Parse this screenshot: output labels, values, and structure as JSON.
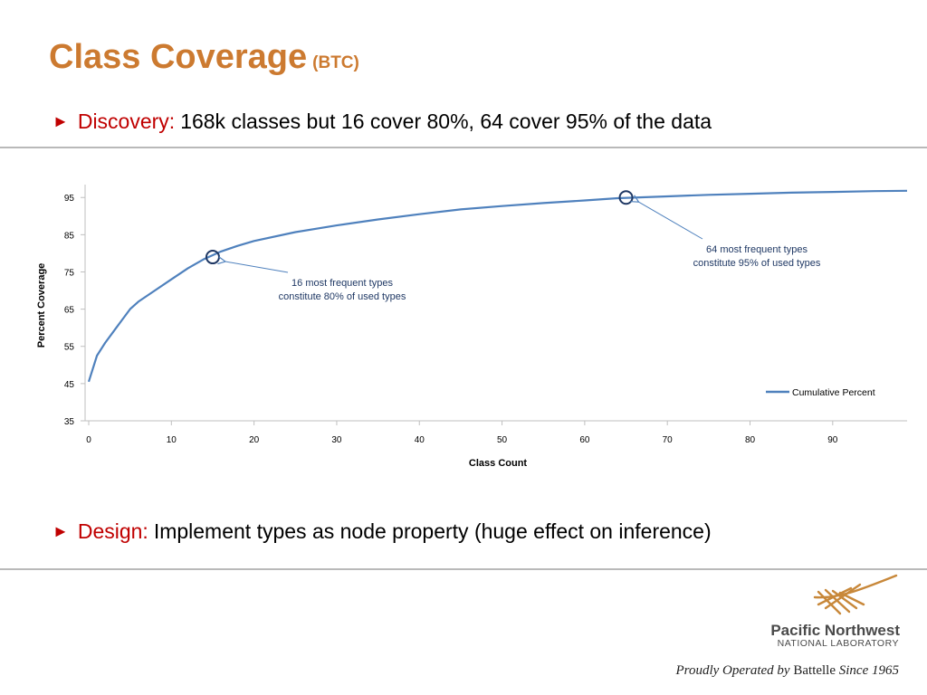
{
  "slide": {
    "title": "Class Coverage",
    "title_suffix": "(BTC)",
    "title_color": "#CC7A30",
    "accent_red": "#C00000",
    "bullet_glyph": "►"
  },
  "bullets": [
    {
      "label": "Discovery:",
      "text": "168k classes but 16 cover 80%, 64 cover 95% of the data"
    },
    {
      "label": "Design:",
      "text": "Implement types as node property (huge effect on inference)"
    }
  ],
  "chart_data": {
    "type": "line",
    "xlabel": "Class Count",
    "ylabel": "Percent Coverage",
    "xlim": [
      0,
      99
    ],
    "ylim": [
      35,
      97
    ],
    "x_ticks": [
      0,
      10,
      20,
      30,
      40,
      50,
      60,
      70,
      80,
      90
    ],
    "y_ticks": [
      35,
      45,
      55,
      65,
      75,
      85,
      95
    ],
    "grid": false,
    "legend_position": "bottom-right",
    "series": [
      {
        "name": "Cumulative Percent",
        "color": "#4F81BD",
        "x": [
          0,
          1,
          2,
          3,
          4,
          5,
          6,
          8,
          10,
          12,
          14,
          16,
          18,
          20,
          25,
          30,
          35,
          40,
          45,
          50,
          55,
          60,
          64,
          70,
          75,
          80,
          85,
          90,
          95,
          99
        ],
        "y": [
          45.5,
          52.5,
          56,
          59,
          62,
          65,
          67,
          70,
          73,
          76,
          78.5,
          80.5,
          82,
          83.3,
          85.7,
          87.5,
          89.1,
          90.5,
          91.8,
          92.7,
          93.5,
          94.2,
          94.8,
          95.3,
          95.7,
          96.0,
          96.3,
          96.5,
          96.7,
          96.8
        ]
      }
    ],
    "annotations": [
      {
        "x": 15,
        "y": 79,
        "text_lines": [
          "16 most frequent types",
          "constitute 80% of used types"
        ]
      },
      {
        "x": 65,
        "y": 95,
        "text_lines": [
          "64 most frequent types",
          "constitute 95% of used types"
        ]
      }
    ]
  },
  "footer": {
    "org_name": "Pacific Northwest",
    "org_sub": "NATIONAL LABORATORY",
    "tagline_pre": "Proudly Operated by",
    "tagline_brand": "Battelle",
    "tagline_post": "Since 1965"
  }
}
